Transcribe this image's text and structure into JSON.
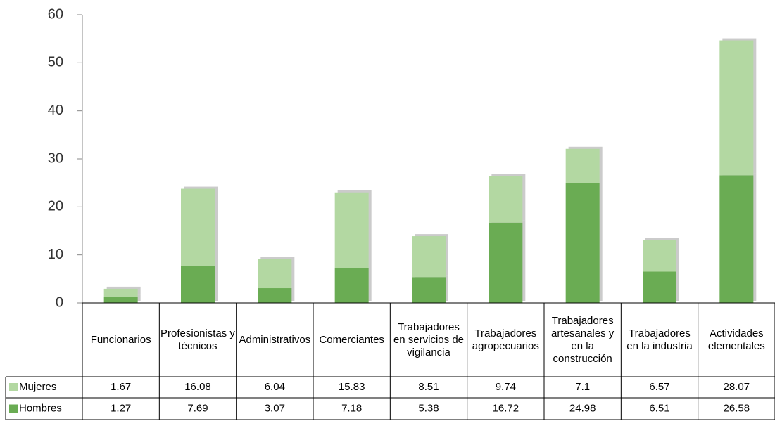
{
  "chart_data": {
    "type": "bar",
    "stacked": true,
    "categories": [
      "Funcionarios",
      "Profesionistas y técnicos",
      "Administrativos",
      "Comerciantes",
      "Trabajadores en servicios de vigilancia",
      "Trabajadores agropecuarios",
      "Trabajadores artesanales y en la construcción",
      "Trabajadores en la industria",
      "Actividades elementales"
    ],
    "series": [
      {
        "name": "Mujeres",
        "color": "#b3d8a2",
        "values": [
          1.67,
          16.08,
          6.04,
          15.83,
          8.51,
          9.74,
          7.1,
          6.57,
          28.07
        ]
      },
      {
        "name": "Hombres",
        "color": "#6aac53",
        "values": [
          1.27,
          7.69,
          3.07,
          7.18,
          5.38,
          16.72,
          24.98,
          6.51,
          26.58
        ]
      }
    ],
    "ylim": [
      0,
      60
    ],
    "yticks": [
      0,
      10,
      20,
      30,
      40,
      50,
      60
    ]
  }
}
